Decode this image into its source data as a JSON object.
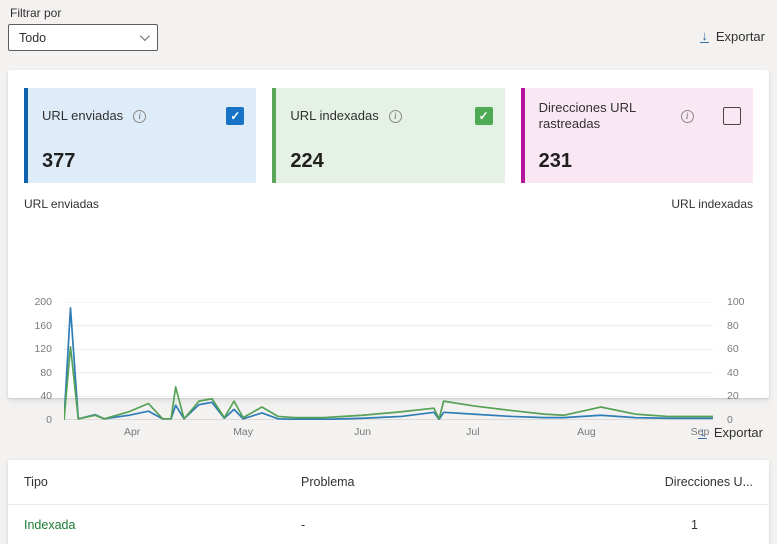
{
  "filter": {
    "label": "Filtrar por",
    "value": "Todo"
  },
  "export": {
    "label": "Exportar"
  },
  "cards": [
    {
      "title": "URL enviadas",
      "value": "377",
      "checked": true,
      "accent": "#1061ae",
      "bg": "#deecf9",
      "checkbox_color": "#1673c5"
    },
    {
      "title": "URL indexadas",
      "value": "224",
      "checked": true,
      "accent": "#5ba55b",
      "bg": "#e5f1e5",
      "checkbox_color": "#4faa54"
    },
    {
      "title": "Direcciones URL rastreadas",
      "value": "231",
      "checked": false,
      "accent": "#b4179e",
      "bg": "#f9e8f4",
      "checkbox_color": ""
    }
  ],
  "chart_data": {
    "type": "line",
    "title": "",
    "left_axis": {
      "label": "URL enviadas",
      "ticks": [
        0,
        40,
        80,
        120,
        160,
        200
      ],
      "max": 200
    },
    "right_axis": {
      "label": "URL indexadas",
      "ticks": [
        0,
        20,
        40,
        60,
        80,
        100
      ],
      "max": 100
    },
    "x_ticks": [
      {
        "label": "Apr",
        "pos": 0.105
      },
      {
        "label": "May",
        "pos": 0.276
      },
      {
        "label": "Jun",
        "pos": 0.46
      },
      {
        "label": "Jul",
        "pos": 0.63
      },
      {
        "label": "Aug",
        "pos": 0.805
      },
      {
        "label": "Sep",
        "pos": 0.98
      }
    ],
    "grid": true,
    "legend": "none",
    "series": [
      {
        "name": "URL enviadas",
        "axis": "left",
        "color": "#2e7db6",
        "points": [
          [
            0.0,
            0
          ],
          [
            0.01,
            190
          ],
          [
            0.022,
            2
          ],
          [
            0.048,
            9
          ],
          [
            0.062,
            2
          ],
          [
            0.1,
            8
          ],
          [
            0.13,
            15
          ],
          [
            0.152,
            2
          ],
          [
            0.165,
            2
          ],
          [
            0.172,
            25
          ],
          [
            0.185,
            2
          ],
          [
            0.208,
            26
          ],
          [
            0.228,
            30
          ],
          [
            0.247,
            3
          ],
          [
            0.262,
            18
          ],
          [
            0.276,
            2
          ],
          [
            0.305,
            12
          ],
          [
            0.33,
            2
          ],
          [
            0.355,
            1
          ],
          [
            0.4,
            1
          ],
          [
            0.46,
            3
          ],
          [
            0.52,
            6
          ],
          [
            0.57,
            13
          ],
          [
            0.578,
            1
          ],
          [
            0.585,
            13
          ],
          [
            0.63,
            10
          ],
          [
            0.69,
            6
          ],
          [
            0.74,
            4
          ],
          [
            0.77,
            4
          ],
          [
            0.827,
            8
          ],
          [
            0.88,
            4
          ],
          [
            0.93,
            3
          ],
          [
            0.98,
            3
          ],
          [
            1.0,
            3
          ]
        ]
      },
      {
        "name": "URL indexadas",
        "axis": "right",
        "color": "#55a155",
        "points": [
          [
            0.0,
            0
          ],
          [
            0.01,
            62
          ],
          [
            0.022,
            1
          ],
          [
            0.048,
            4
          ],
          [
            0.062,
            1
          ],
          [
            0.1,
            7
          ],
          [
            0.13,
            14
          ],
          [
            0.152,
            1
          ],
          [
            0.165,
            1
          ],
          [
            0.172,
            28
          ],
          [
            0.185,
            1
          ],
          [
            0.208,
            16
          ],
          [
            0.228,
            18
          ],
          [
            0.247,
            2
          ],
          [
            0.262,
            16
          ],
          [
            0.276,
            2
          ],
          [
            0.305,
            11
          ],
          [
            0.33,
            3
          ],
          [
            0.355,
            2
          ],
          [
            0.4,
            2
          ],
          [
            0.46,
            4
          ],
          [
            0.52,
            7
          ],
          [
            0.57,
            10
          ],
          [
            0.578,
            1
          ],
          [
            0.585,
            16
          ],
          [
            0.63,
            12
          ],
          [
            0.69,
            8
          ],
          [
            0.74,
            5
          ],
          [
            0.77,
            4
          ],
          [
            0.827,
            11
          ],
          [
            0.88,
            5
          ],
          [
            0.93,
            3
          ],
          [
            0.98,
            3
          ],
          [
            1.0,
            3
          ]
        ]
      }
    ]
  },
  "table": {
    "columns": [
      "Tipo",
      "Problema",
      "Direcciones U..."
    ],
    "rows": [
      {
        "tipo": "Indexada",
        "problema": "-",
        "direcciones": "1"
      }
    ]
  }
}
